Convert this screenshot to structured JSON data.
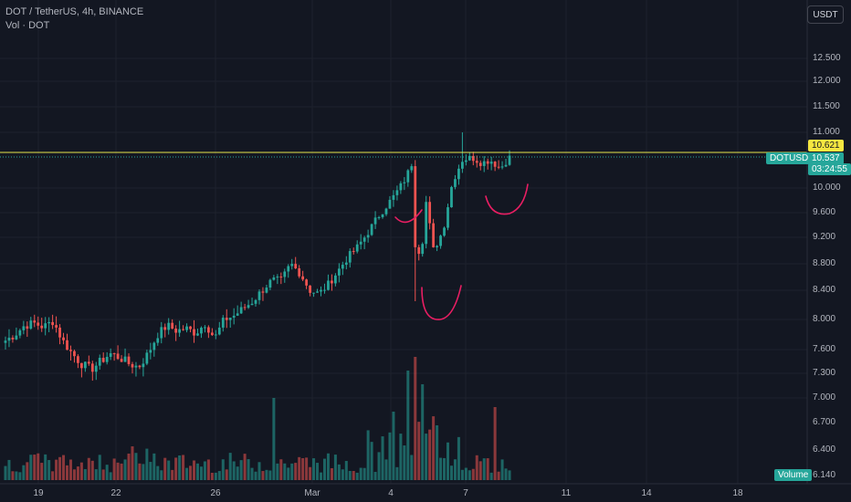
{
  "header": {
    "symbol_line": "DOT / TetherUS, 4h, BINANCE",
    "indicator_line": "Vol · DOT"
  },
  "currency_button": "USDT",
  "price_axis": {
    "ticks": [
      "12.500",
      "12.000",
      "11.500",
      "11.000",
      "10.000",
      "9.600",
      "9.200",
      "8.800",
      "8.400",
      "8.000",
      "7.600",
      "7.300",
      "7.000",
      "6.700",
      "6.400",
      "6.140"
    ]
  },
  "time_axis": {
    "ticks": [
      "19",
      "22",
      "26",
      "Mar",
      "4",
      "7",
      "11",
      "14",
      "18"
    ]
  },
  "markers": {
    "resistance_label": "10.621",
    "symbol_tag": "DOTUSDT",
    "last_price": "10.537",
    "countdown": "03:24:55",
    "volume_tag": "Volume"
  },
  "colors": {
    "background": "#131722",
    "up": "#26a69a",
    "down": "#ef5350",
    "resistance_line": "#e6e64c",
    "drawing": "#e91e63"
  },
  "chart_data": {
    "type": "candlestick",
    "symbol": "DOT/USDT",
    "interval": "4h",
    "exchange": "BINANCE",
    "x_ticks": [
      "19",
      "22",
      "26",
      "Mar",
      "4",
      "7",
      "11",
      "14",
      "18"
    ],
    "y_ticks": [
      12.5,
      12.0,
      11.5,
      11.0,
      10.0,
      9.6,
      9.2,
      8.8,
      8.4,
      8.0,
      7.6,
      7.3,
      7.0,
      6.7,
      6.4,
      6.14
    ],
    "horizontal_line": 10.621,
    "last_price": 10.537,
    "close_path": [
      7.72,
      7.8,
      7.92,
      7.95,
      7.9,
      7.98,
      7.72,
      7.55,
      7.42,
      7.35,
      7.45,
      7.55,
      7.5,
      7.42,
      7.38,
      7.55,
      7.8,
      7.92,
      7.85,
      7.88,
      7.82,
      7.95,
      7.75,
      8.0,
      8.05,
      8.15,
      8.25,
      8.4,
      8.55,
      8.55,
      8.8,
      8.65,
      8.4,
      8.35,
      8.5,
      8.7,
      8.9,
      9.05,
      9.25,
      9.5,
      9.7,
      9.9,
      10.15,
      10.55,
      10.0,
      9.0,
      9.3,
      10.1,
      10.5,
      10.55,
      10.45,
      10.5,
      10.35,
      10.55
    ],
    "volume_series": "bars beneath price, with spikes near 28 Feb, 4–6 Mar and 8 Mar"
  }
}
